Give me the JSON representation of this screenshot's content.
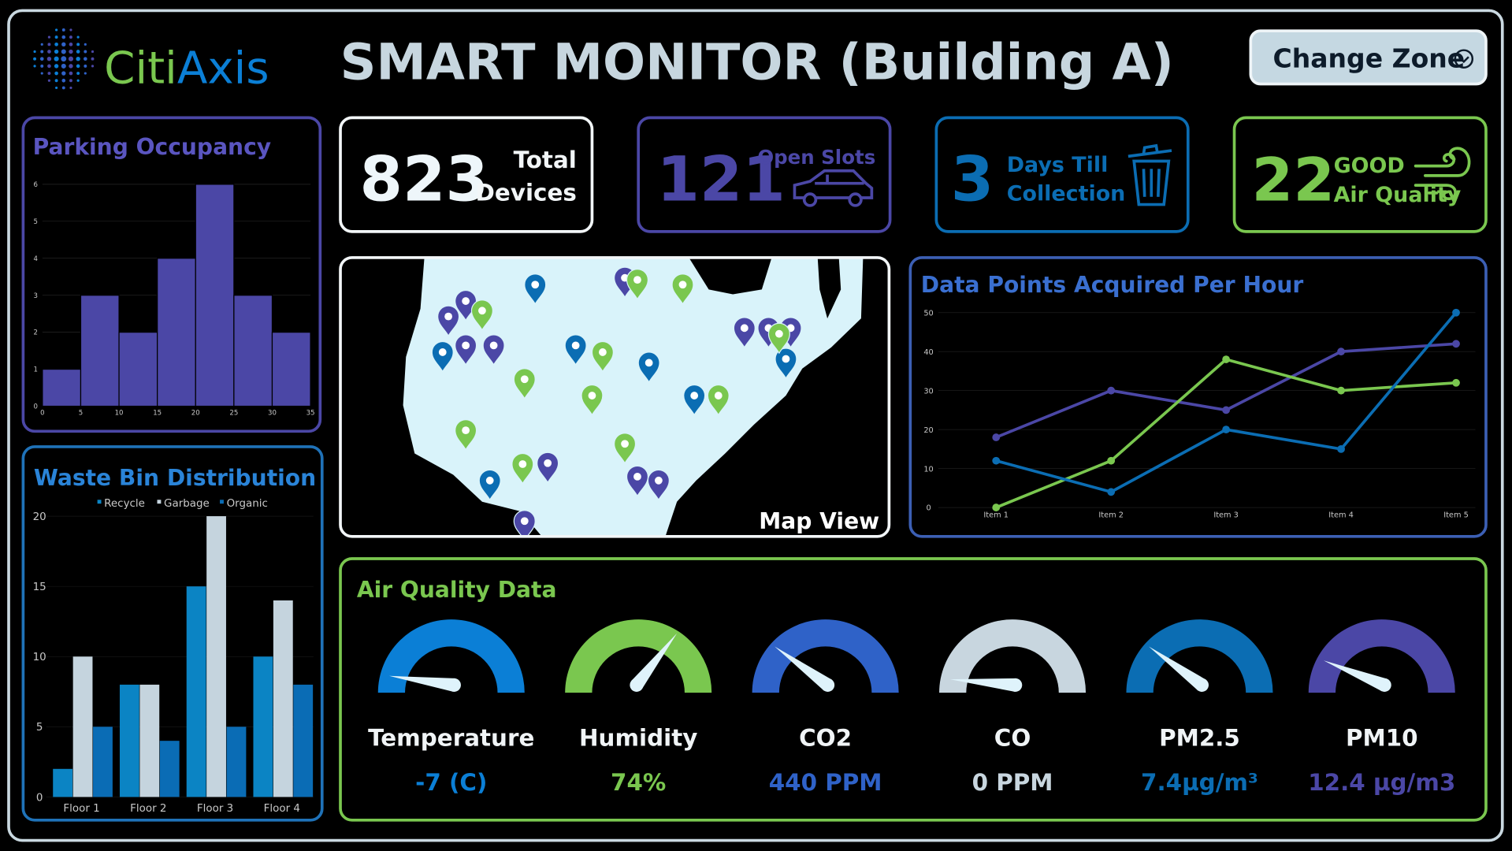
{
  "header": {
    "logo": [
      "Citi",
      "Axis"
    ],
    "title": "SMART MONITOR (Building A)",
    "button": "Change Zone"
  },
  "kpis": [
    {
      "value": 823,
      "label": [
        "Total",
        "Devices"
      ]
    },
    {
      "value": 121,
      "label": [
        "Open Slots"
      ]
    },
    {
      "value": 3,
      "label": [
        "Days Till",
        "Collection"
      ]
    },
    {
      "value": 22,
      "label": [
        "GOOD",
        "Air Quality"
      ]
    }
  ],
  "map": {
    "label": "Map View"
  },
  "chart_data": [
    {
      "type": "histogram",
      "title": "Parking Occupancy",
      "bins": [
        0,
        5,
        10,
        15,
        20,
        25,
        30,
        35
      ],
      "values": [
        1,
        3,
        2,
        4,
        6,
        3,
        2
      ],
      "color": "#4b47a6",
      "xlim": [
        0,
        35
      ],
      "xticks": [
        0,
        5,
        10,
        15,
        20,
        25,
        30,
        35
      ],
      "ylim": [
        0,
        6
      ],
      "yticks": [
        0,
        1,
        2,
        3,
        4,
        5,
        6
      ],
      "grid": true
    },
    {
      "type": "line",
      "title": "Data Points Acquired Per Hour",
      "categories": [
        "Item 1",
        "Item 2",
        "Item 3",
        "Item 4",
        "Item 5"
      ],
      "series": [
        {
          "color": "#4b47a6",
          "values": [
            18,
            30,
            25,
            40,
            42
          ]
        },
        {
          "color": "#7ac74f",
          "values": [
            0,
            12,
            38,
            30,
            32
          ]
        },
        {
          "color": "#0b6db3",
          "values": [
            12,
            4,
            20,
            15,
            50
          ]
        }
      ],
      "ylim": [
        0,
        50
      ],
      "yticks": [
        0,
        10,
        20,
        30,
        40,
        50
      ],
      "grid": true
    },
    {
      "type": "bar",
      "title": "Waste Bin Distribution",
      "categories": [
        "Floor 1",
        "Floor 2",
        "Floor 3",
        "Floor 4"
      ],
      "series": [
        {
          "name": "Recycle",
          "color": "#0b84c4",
          "values": [
            2,
            8,
            15,
            10
          ]
        },
        {
          "name": "Garbage",
          "color": "#c5d4de",
          "values": [
            10,
            8,
            20,
            14
          ]
        },
        {
          "name": "Organic",
          "color": "#0a6cb5",
          "values": [
            5,
            4,
            5,
            8
          ]
        }
      ],
      "ylim": [
        0,
        20
      ],
      "yticks": [
        0,
        5,
        10,
        15,
        20
      ],
      "grid": true,
      "legend": "top"
    }
  ],
  "air_quality": {
    "title": "Air Quality Data",
    "gauges": [
      {
        "label": "Temperature",
        "reading": "-7 (C)",
        "color": "#0b7fd6"
      },
      {
        "label": "Humidity",
        "reading": "74%",
        "color": "#7ac74f"
      },
      {
        "label": "CO2",
        "reading": "440 PPM",
        "color": "#2f62c8"
      },
      {
        "label": "CO",
        "reading": "0 PPM",
        "color": "#c8d6df"
      },
      {
        "label": "PM2.5",
        "reading": "7.4µg/m³",
        "color": "#0b6db3"
      },
      {
        "label": "PM10",
        "reading": "12.4 µg/m3",
        "color": "#4b47a6"
      }
    ]
  }
}
